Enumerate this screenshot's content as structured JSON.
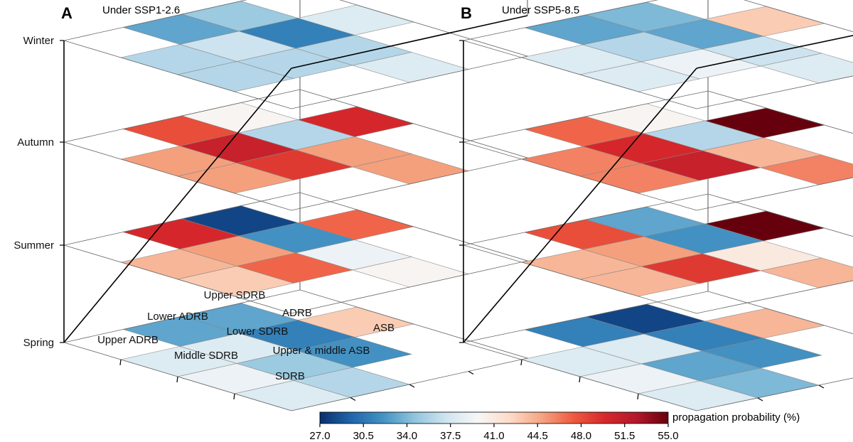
{
  "chart_data": [
    {
      "type": "heatmap",
      "panel": "A",
      "title": "Under SSP1-2.6",
      "layers": [
        "Spring",
        "Summer",
        "Autumn",
        "Winter"
      ],
      "region_labels": [
        "Upper SDRB",
        "Lower ADRB",
        "ADRB",
        "ASB",
        "Upper ADRB",
        "Lower SDRB",
        "Middle SDRB",
        "Upper & middle ASB",
        "SDRB"
      ],
      "grid_values": {
        "Spring": [
          [
            null,
            43,
            null,
            null
          ],
          [
            33,
            31,
            32,
            null
          ],
          [
            33,
            38,
            35,
            36
          ],
          [
            null,
            38,
            39,
            38
          ]
        ],
        "Summer": [
          [
            null,
            47,
            null,
            null
          ],
          [
            28,
            32,
            39,
            40
          ],
          [
            50,
            45,
            47,
            null
          ],
          [
            null,
            44,
            43,
            null
          ]
        ],
        "Autumn": [
          [
            null,
            50,
            null,
            null
          ],
          [
            40,
            36,
            45,
            45
          ],
          [
            48,
            51,
            49,
            null
          ],
          [
            null,
            45,
            45,
            null
          ]
        ],
        "Winter": [
          [
            null,
            38,
            null,
            null
          ],
          [
            35,
            31,
            36,
            38
          ],
          [
            33,
            37,
            36,
            null
          ],
          [
            null,
            36,
            36,
            null
          ]
        ]
      }
    },
    {
      "type": "heatmap",
      "panel": "B",
      "title": "Under SSP5-8.5",
      "layers": [
        "Spring",
        "Summer",
        "Autumn",
        "Winter"
      ],
      "grid_values": {
        "Spring": [
          [
            null,
            44,
            null,
            null
          ],
          [
            28,
            31,
            32,
            null
          ],
          [
            31,
            38,
            33,
            34
          ],
          [
            null,
            38,
            39,
            38
          ]
        ],
        "Summer": [
          [
            null,
            55,
            null,
            null
          ],
          [
            33,
            32,
            41,
            44
          ],
          [
            48,
            45,
            49,
            null
          ],
          [
            null,
            44,
            44,
            null
          ]
        ],
        "Autumn": [
          [
            null,
            55,
            null,
            null
          ],
          [
            40,
            36,
            44,
            46
          ],
          [
            47,
            50,
            51,
            null
          ],
          [
            null,
            46,
            46,
            null
          ]
        ],
        "Winter": [
          [
            null,
            43,
            null,
            null
          ],
          [
            34,
            33,
            37,
            38
          ],
          [
            33,
            36,
            39,
            null
          ],
          [
            null,
            38,
            38,
            null
          ]
        ]
      }
    }
  ],
  "colorbar": {
    "label": "propagation probability (%)",
    "min": 27.0,
    "max": 55.0,
    "ticks": [
      "27.0",
      "30.5",
      "34.0",
      "37.5",
      "41.0",
      "44.5",
      "48.0",
      "51.5",
      "55.0"
    ],
    "colors": [
      "#08306b",
      "#2166ac",
      "#4393c3",
      "#92c5de",
      "#d1e5f0",
      "#f7f7f7",
      "#fddbc7",
      "#f4a582",
      "#ef5a3f",
      "#d6282b",
      "#b2182b",
      "#67000d"
    ]
  }
}
